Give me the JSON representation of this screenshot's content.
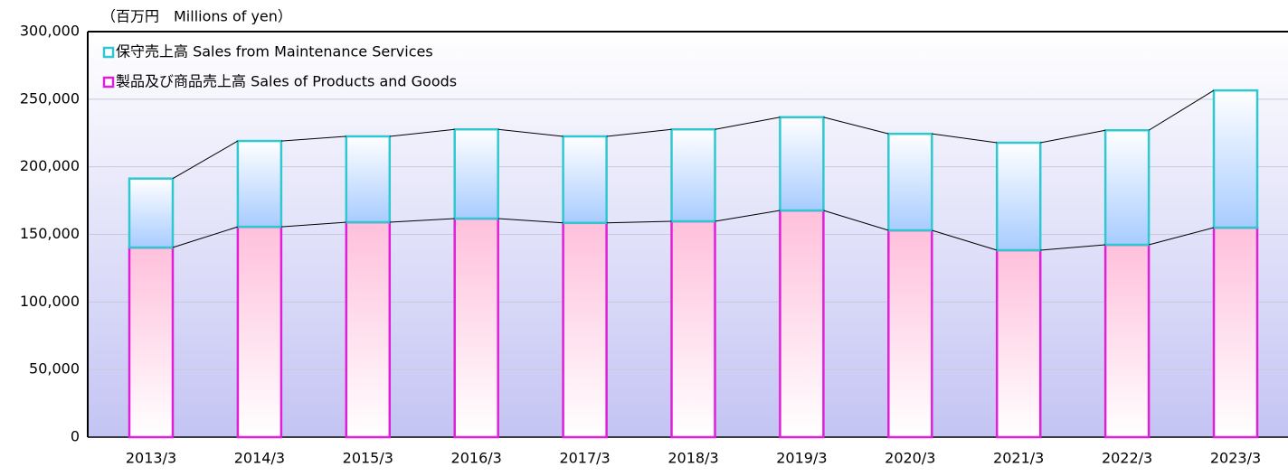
{
  "chart_data": {
    "type": "bar",
    "stacked": true,
    "ylabel": "（百万円　Millions of yen）",
    "categories": [
      "2013/3",
      "2014/3",
      "2015/3",
      "2016/3",
      "2017/3",
      "2018/3",
      "2019/3",
      "2020/3",
      "2021/3",
      "2022/3",
      "2023/3"
    ],
    "series": [
      {
        "name": "製品及び商品売上高 Sales of Products and Goods",
        "color": "#e020d8",
        "values": [
          140300,
          155600,
          159000,
          161700,
          158500,
          159700,
          167700,
          153000,
          138300,
          142300,
          155000
        ]
      },
      {
        "name": "保守売上高 Sales from Maintenance Services",
        "color": "#30c8d0",
        "values": [
          51000,
          63500,
          63500,
          66000,
          64000,
          68000,
          69000,
          71400,
          79500,
          84700,
          101500
        ]
      }
    ],
    "ylim": [
      0,
      300000
    ],
    "yticks": [
      {
        "value": 0,
        "label": "0"
      },
      {
        "value": 50000,
        "label": "50,000"
      },
      {
        "value": 100000,
        "label": "100,000"
      },
      {
        "value": 150000,
        "label": "150,000"
      },
      {
        "value": 200000,
        "label": "200,000"
      },
      {
        "value": 250000,
        "label": "250,000"
      },
      {
        "value": 300000,
        "label": "300,000"
      }
    ],
    "grid": true,
    "legend": "upper left"
  }
}
